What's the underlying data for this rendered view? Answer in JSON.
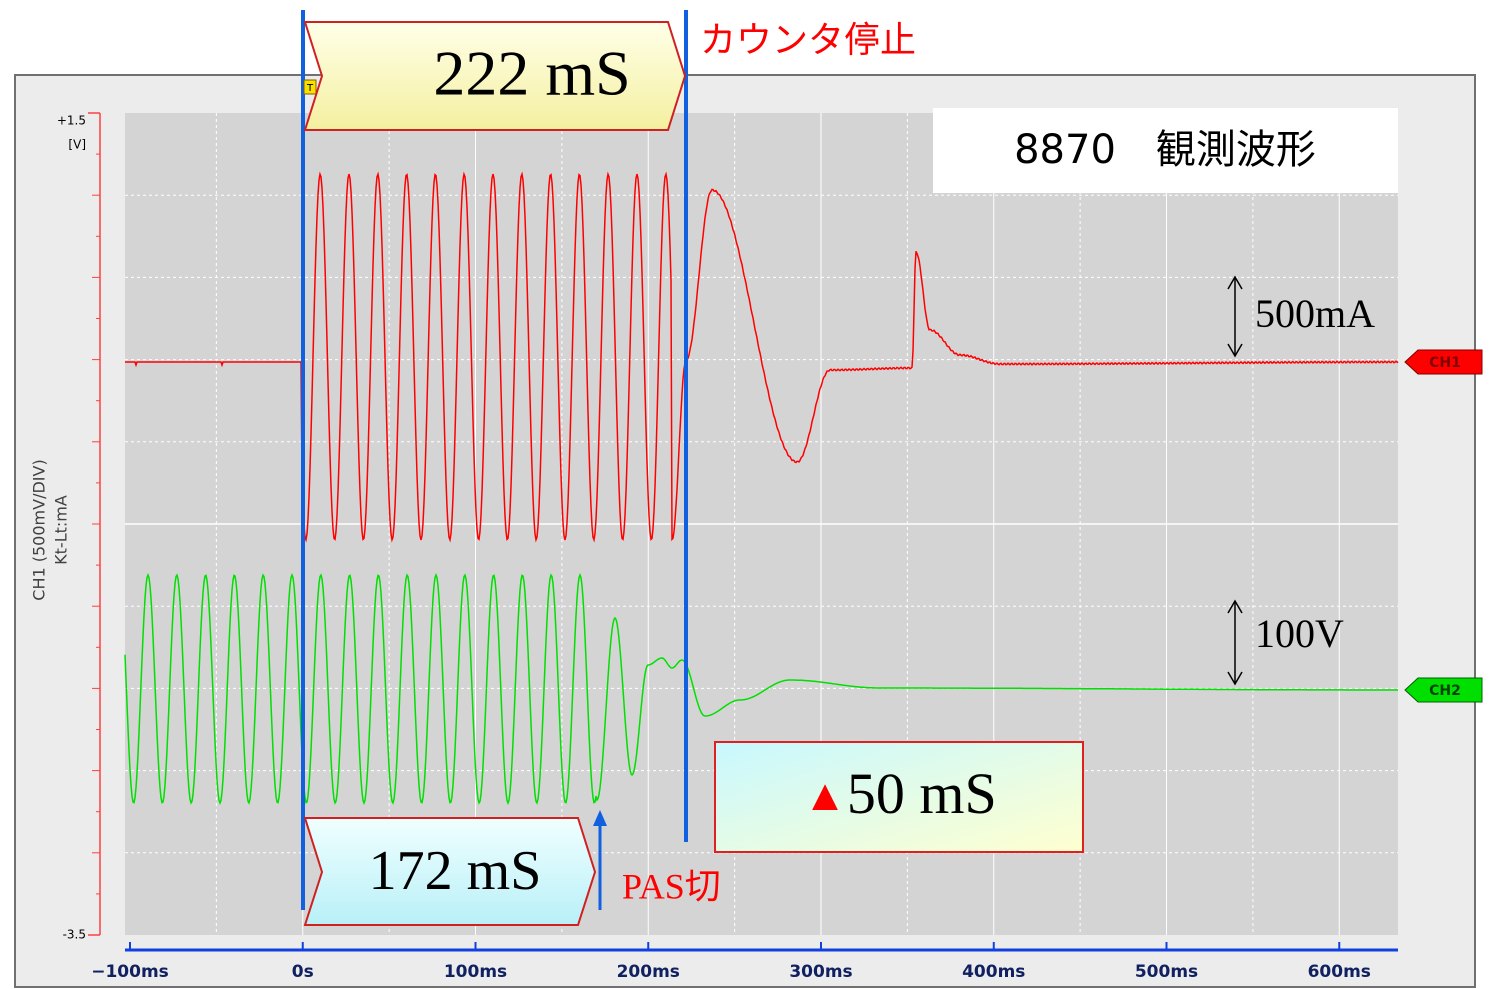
{
  "chart_data": {
    "type": "line",
    "xlim": [
      -100,
      634
    ],
    "xticks": [
      {
        "value": -100,
        "label": "−100ms"
      },
      {
        "value": 0,
        "label": "0s"
      },
      {
        "value": 100,
        "label": "100ms"
      },
      {
        "value": 200,
        "label": "200ms"
      },
      {
        "value": 300,
        "label": "300ms"
      },
      {
        "value": 400,
        "label": "400ms"
      },
      {
        "value": 500,
        "label": "500ms"
      },
      {
        "value": 600,
        "label": "600ms"
      }
    ],
    "ylim": [
      -3.5,
      1.5
    ],
    "yticks": [
      {
        "value": 1.5,
        "label": "+1.5"
      },
      {
        "value": -3.5,
        "label": "-3.5"
      }
    ],
    "y_unit": "[V]",
    "y_axis_label": [
      "CH1 (500mV/DIV)",
      "Kt-Lt:mA"
    ],
    "grid": true,
    "series": [
      {
        "name": "CH1",
        "color": "#ff0000"
      },
      {
        "name": "CH2",
        "color": "#00e000"
      }
    ],
    "trigger_marker": "T",
    "title": "8870　観測波形",
    "annotations": {
      "counter_time": "222 mS",
      "counter_stop": "カウンタ停止",
      "pas_time": "172 mS",
      "pas_off": "PAS切",
      "difference": {
        "symbol": "▲",
        "text": "50 mS"
      },
      "ch1_scale": "500mA",
      "ch2_scale": "100V"
    }
  }
}
